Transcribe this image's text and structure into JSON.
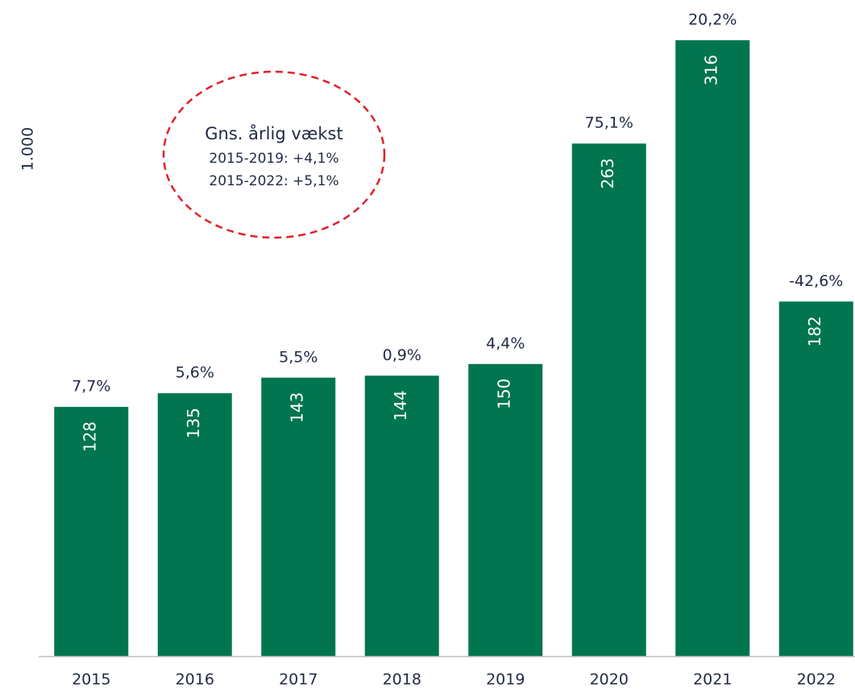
{
  "chart_data": {
    "type": "bar",
    "y_label": "1.000",
    "categories": [
      "2015",
      "2016",
      "2017",
      "2018",
      "2019",
      "2020",
      "2021",
      "2022"
    ],
    "values": [
      128,
      135,
      143,
      144,
      150,
      263,
      316,
      182
    ],
    "annotations": [
      "7,7%",
      "5,6%",
      "5,5%",
      "0,9%",
      "4,4%",
      "75,1%",
      "20,2%",
      "-42,6%"
    ],
    "callout": [
      "Gns. årlig vækst",
      "2015-2019: +4,1%",
      "2015-2022: +5,1%"
    ],
    "color": "#00754f",
    "ylim": [
      0,
      330
    ]
  }
}
